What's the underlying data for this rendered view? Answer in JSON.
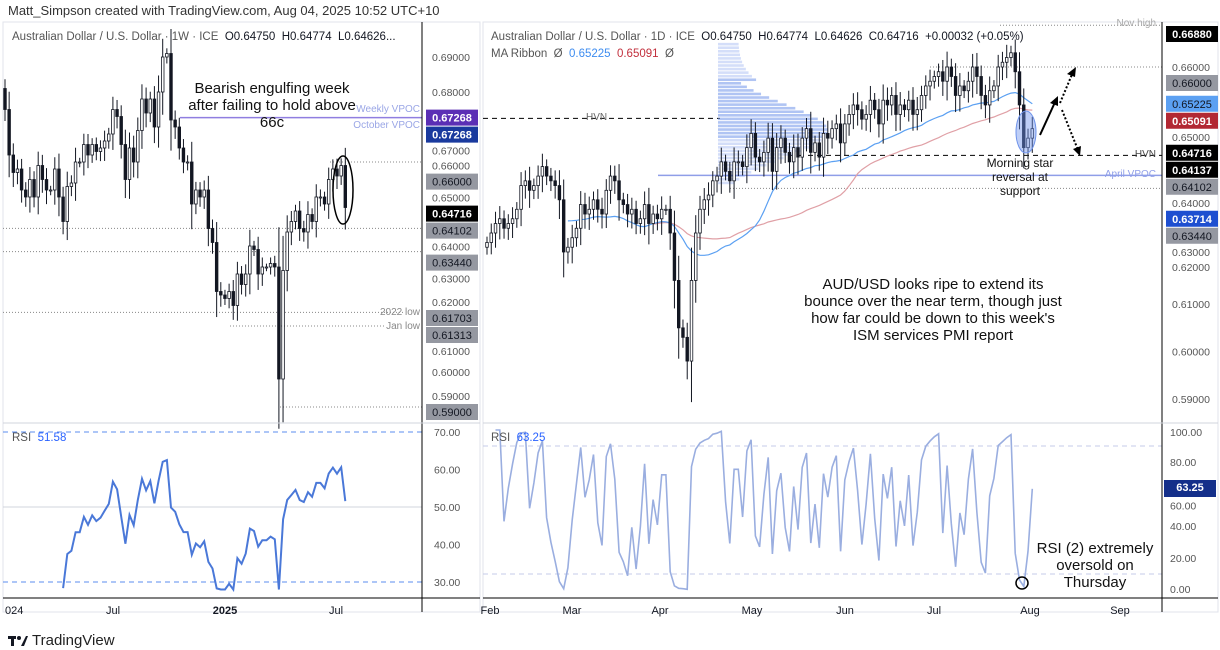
{
  "header": {
    "created_by": "Matt_Simpson created with TradingView.com, Aug 04, 2025 10:52 UTC+10"
  },
  "brand": {
    "name": "TradingView"
  },
  "colors": {
    "up": "#ffffff",
    "down": "#131722",
    "rsi_weekly": "#4a78d8",
    "rsi_daily": "#9aaee0",
    "ma_fast": "#5ba0f2",
    "ma_slow": "#e0a0a6",
    "vpoc": "#8f9ee8",
    "profile": "#6f93ea"
  },
  "left": {
    "legend": {
      "symbol": "Australian Dollar / U.S. Dollar · 1W · ICE",
      "o": "O0.64750",
      "h": "H0.64774",
      "l": "L0.64626..."
    },
    "rsi_legend": {
      "name": "RSI",
      "value": "51.58"
    },
    "annotation": "Bearish engulfing week after failing to hold above 66c",
    "line_labels": {
      "weekly_vpoc": "Weekly VPOC",
      "october_vpoc": "October VPOC",
      "low_2022": "2022 low",
      "jan_low": "Jan low"
    },
    "time_labels": [
      "024",
      "Jul",
      "2025",
      "Jul"
    ]
  },
  "right": {
    "legend": {
      "symbol": "Australian Dollar / U.S. Dollar · 1D · ICE",
      "o": "O0.64750",
      "h": "H0.64774",
      "l": "L0.64626",
      "c": "C0.64716",
      "chg": "+0.00032 (+0.05%)"
    },
    "ma_legend": {
      "name": "MA Ribbon",
      "sym1": "Ø",
      "v1": "0.65225",
      "v2": "0.65091",
      "sym2": "Ø"
    },
    "rsi_legend": {
      "name": "RSI",
      "value": "63.25"
    },
    "rsi_badge": "63.25",
    "line_labels": {
      "nov_high": "Nov high",
      "hvn_left": "HVN",
      "hvn_right": "HVN",
      "april_vpoc": "April VPOC"
    },
    "annotation_star": "Morning star reversal at support",
    "annotation_main": "AUD/USD looks ripe to extend its bounce over the near term, though just how far could be down to this week's ISM services PMI report",
    "annotation_rsi": "RSI (2) extremely oversold on Thursday",
    "time_labels": [
      "Feb",
      "Mar",
      "Apr",
      "May",
      "Jun",
      "Jul",
      "Aug",
      "Sep"
    ]
  },
  "chart_data": [
    {
      "type": "candlestick",
      "title": "Australian Dollar / U.S. Dollar · 1W · ICE",
      "x_range": [
        "2024-01",
        "2025-08"
      ],
      "ylim": [
        0.585,
        0.7
      ],
      "y_ticks": [
        "0.69000",
        "0.68000",
        "0.67000",
        "0.66000",
        "0.65000",
        "0.64000",
        "0.63000",
        "0.62000",
        "0.61000",
        "0.60000",
        "0.59000"
      ],
      "weekly_closes": [
        0.675,
        0.662,
        0.657,
        0.658,
        0.652,
        0.65,
        0.655,
        0.65,
        0.659,
        0.655,
        0.652,
        0.652,
        0.658,
        0.65,
        0.643,
        0.653,
        0.654,
        0.66,
        0.66,
        0.665,
        0.662,
        0.665,
        0.663,
        0.664,
        0.666,
        0.668,
        0.675,
        0.673,
        0.665,
        0.655,
        0.664,
        0.66,
        0.669,
        0.678,
        0.674,
        0.678,
        0.67,
        0.68,
        0.69,
        0.691,
        0.672,
        0.67,
        0.664,
        0.66,
        0.66,
        0.648,
        0.652,
        0.65,
        0.652,
        0.641,
        0.637,
        0.623,
        0.622,
        0.621,
        0.623,
        0.619,
        0.628,
        0.625,
        0.628,
        0.636,
        0.635,
        0.628,
        0.63,
        0.63,
        0.631,
        0.63,
        0.598,
        0.629,
        0.64,
        0.643,
        0.646,
        0.641,
        0.64,
        0.645,
        0.643,
        0.65,
        0.65,
        0.648,
        0.655,
        0.658,
        0.656,
        0.659,
        0.647
      ],
      "price_badges": [
        {
          "value": "0.67268",
          "bg": "#5b2fb5",
          "fg": "#ffffff"
        },
        {
          "value": "0.67268",
          "bg": "#1a3a9e",
          "fg": "#ffffff"
        },
        {
          "value": "0.66000",
          "bg": "#9598a1",
          "fg": "#131722"
        },
        {
          "value": "0.64716",
          "bg": "#000000",
          "fg": "#ffffff"
        },
        {
          "value": "0.64102",
          "bg": "#9598a1",
          "fg": "#131722"
        },
        {
          "value": "0.63440",
          "bg": "#9598a1",
          "fg": "#131722"
        },
        {
          "value": "0.61703",
          "bg": "#9598a1",
          "fg": "#131722"
        },
        {
          "value": "0.61313",
          "bg": "#9598a1",
          "fg": "#131722"
        },
        {
          "value": "0.59000",
          "bg": "#9598a1",
          "fg": "#131722"
        }
      ],
      "rsi": {
        "period": 14,
        "last": 51.58,
        "levels": [
          70,
          50,
          30
        ],
        "y_ticks": [
          "70.00",
          "60.00",
          "50.00",
          "40.00",
          "30.00"
        ]
      }
    },
    {
      "type": "candlestick",
      "title": "Australian Dollar / U.S. Dollar · 1D · ICE",
      "x_range": [
        "2025-02-03",
        "2025-08-01"
      ],
      "ylim": [
        0.585,
        0.67
      ],
      "y_ticks": [
        "0.66000",
        "0.65000",
        "0.64000",
        "0.63000",
        "0.62000",
        "0.61000",
        "0.60000",
        "0.59000"
      ],
      "daily_closes": [
        0.623,
        0.625,
        0.627,
        0.628,
        0.626,
        0.627,
        0.628,
        0.63,
        0.635,
        0.636,
        0.634,
        0.635,
        0.637,
        0.639,
        0.637,
        0.636,
        0.635,
        0.632,
        0.621,
        0.622,
        0.624,
        0.626,
        0.631,
        0.629,
        0.63,
        0.632,
        0.63,
        0.629,
        0.634,
        0.637,
        0.636,
        0.632,
        0.631,
        0.629,
        0.63,
        0.627,
        0.628,
        0.631,
        0.627,
        0.629,
        0.628,
        0.63,
        0.63,
        0.625,
        0.615,
        0.605,
        0.603,
        0.598,
        0.615,
        0.625,
        0.63,
        0.632,
        0.633,
        0.636,
        0.637,
        0.64,
        0.638,
        0.636,
        0.64,
        0.64,
        0.639,
        0.643,
        0.646,
        0.641,
        0.64,
        0.642,
        0.645,
        0.638,
        0.643,
        0.645,
        0.642,
        0.64,
        0.643,
        0.641,
        0.645,
        0.647,
        0.642,
        0.644,
        0.641,
        0.646,
        0.645,
        0.647,
        0.648,
        0.644,
        0.648,
        0.65,
        0.652,
        0.651,
        0.649,
        0.65,
        0.653,
        0.651,
        0.648,
        0.653,
        0.652,
        0.654,
        0.65,
        0.652,
        0.651,
        0.653,
        0.65,
        0.651,
        0.654,
        0.656,
        0.657,
        0.658,
        0.659,
        0.657,
        0.66,
        0.658,
        0.654,
        0.656,
        0.655,
        0.657,
        0.66,
        0.658,
        0.654,
        0.652,
        0.655,
        0.656,
        0.66,
        0.661,
        0.662,
        0.663,
        0.659,
        0.652,
        0.643,
        0.645,
        0.647
      ],
      "ma_ribbon": {
        "fast_last": 0.65225,
        "slow_last": 0.65091
      },
      "price_badges": [
        {
          "value": "0.66880",
          "bg": "#000000",
          "fg": "#ffffff"
        },
        {
          "value": "0.66000",
          "bg": "#9598a1",
          "fg": "#131722"
        },
        {
          "value": "0.65225",
          "bg": "#5ba0f2",
          "fg": "#131722"
        },
        {
          "value": "0.65091",
          "bg": "#b22833",
          "fg": "#ffffff"
        },
        {
          "value": "0.64716",
          "bg": "#000000",
          "fg": "#ffffff"
        },
        {
          "value": "0.64137",
          "bg": "#000000",
          "fg": "#ffffff"
        },
        {
          "value": "0.64102",
          "bg": "#9598a1",
          "fg": "#131722"
        },
        {
          "value": "0.63714",
          "bg": "#1e4fd0",
          "fg": "#ffffff"
        },
        {
          "value": "0.63440",
          "bg": "#9598a1",
          "fg": "#131722"
        }
      ],
      "rsi": {
        "period": 2,
        "last": 63.25,
        "levels": [
          90,
          10
        ],
        "y_ticks": [
          "100.00",
          "80.00",
          "60.00",
          "40.00",
          "20.00",
          "0.00"
        ]
      }
    }
  ]
}
